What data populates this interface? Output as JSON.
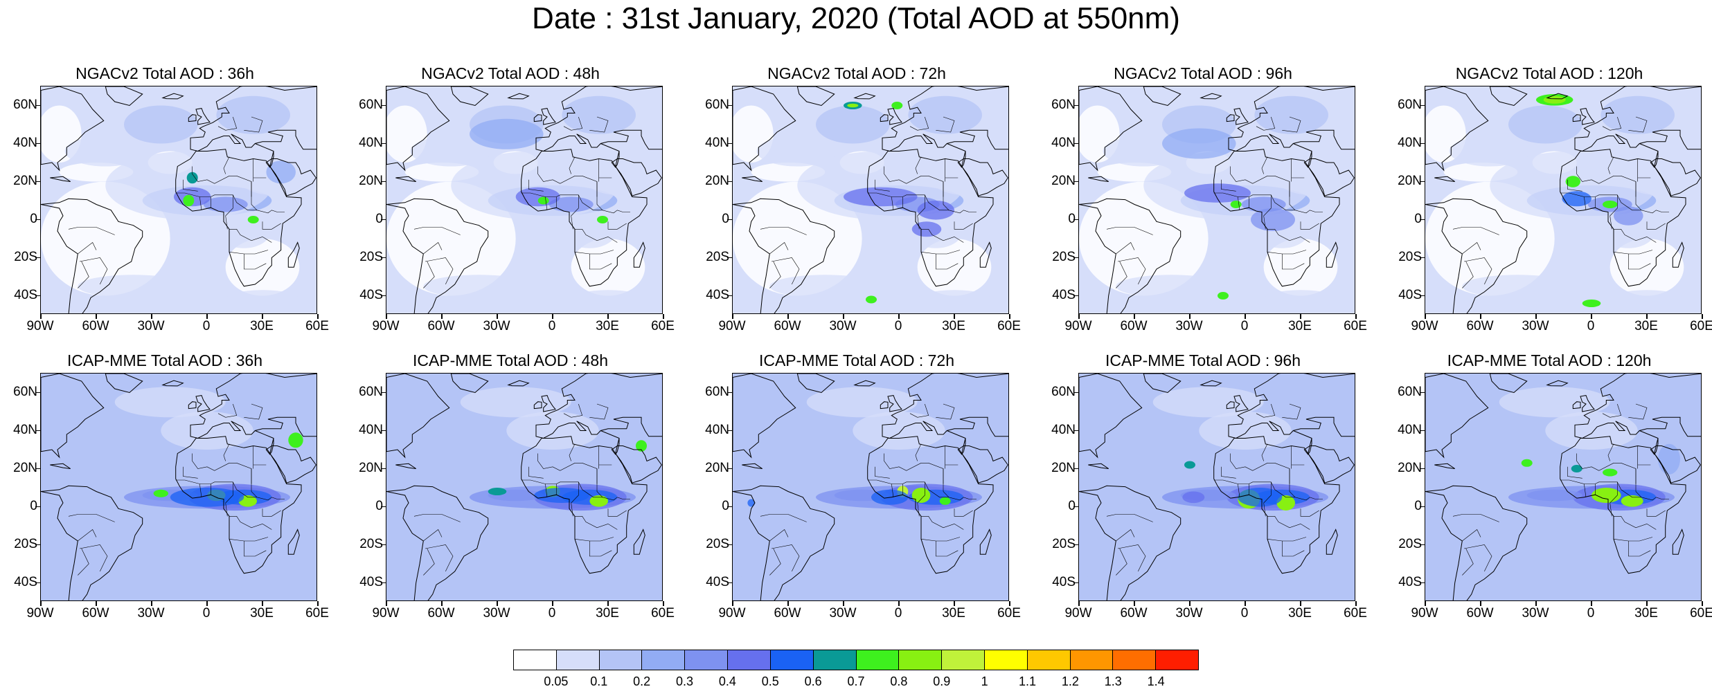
{
  "title": "Date : 31st January, 2020 (Total AOD at 550nm)",
  "lat_labels": [
    "60N",
    "40N",
    "20N",
    "0",
    "20S",
    "40S"
  ],
  "lat_values": [
    60,
    40,
    20,
    0,
    -20,
    -40
  ],
  "lon_labels": [
    "90W",
    "60W",
    "30W",
    "0",
    "30E",
    "60E"
  ],
  "lon_values": [
    -90,
    -60,
    -30,
    0,
    30,
    60
  ],
  "map_extent": {
    "lon_min": -90,
    "lon_max": 60,
    "lat_min": -50,
    "lat_max": 70
  },
  "panels": [
    {
      "title": "NGACv2 Total AOD : 36h",
      "model": "NGACv2",
      "forecast_hour": 36
    },
    {
      "title": "NGACv2 Total AOD : 48h",
      "model": "NGACv2",
      "forecast_hour": 48
    },
    {
      "title": "NGACv2 Total AOD : 72h",
      "model": "NGACv2",
      "forecast_hour": 72
    },
    {
      "title": "NGACv2 Total AOD : 96h",
      "model": "NGACv2",
      "forecast_hour": 96
    },
    {
      "title": "NGACv2 Total AOD : 120h",
      "model": "NGACv2",
      "forecast_hour": 120
    },
    {
      "title": "ICAP-MME Total AOD : 36h",
      "model": "ICAP-MME",
      "forecast_hour": 36
    },
    {
      "title": "ICAP-MME Total AOD : 48h",
      "model": "ICAP-MME",
      "forecast_hour": 48
    },
    {
      "title": "ICAP-MME Total AOD : 72h",
      "model": "ICAP-MME",
      "forecast_hour": 72
    },
    {
      "title": "ICAP-MME Total AOD : 96h",
      "model": "ICAP-MME",
      "forecast_hour": 96
    },
    {
      "title": "ICAP-MME Total AOD : 120h",
      "model": "ICAP-MME",
      "forecast_hour": 120
    }
  ],
  "colorbar": {
    "labels": [
      "0.05",
      "0.1",
      "0.2",
      "0.3",
      "0.4",
      "0.5",
      "0.6",
      "0.7",
      "0.8",
      "0.9",
      "1",
      "1.1",
      "1.2",
      "1.3",
      "1.4"
    ],
    "colors": [
      "#ffffff",
      "#d6defa",
      "#b4c4f6",
      "#92acf4",
      "#7e92f0",
      "#6670ee",
      "#1a62f4",
      "#0a9a96",
      "#3ef01e",
      "#88f012",
      "#c0f23a",
      "#ffff00",
      "#ffc800",
      "#ff9600",
      "#ff6e00",
      "#ff1e00"
    ]
  }
}
